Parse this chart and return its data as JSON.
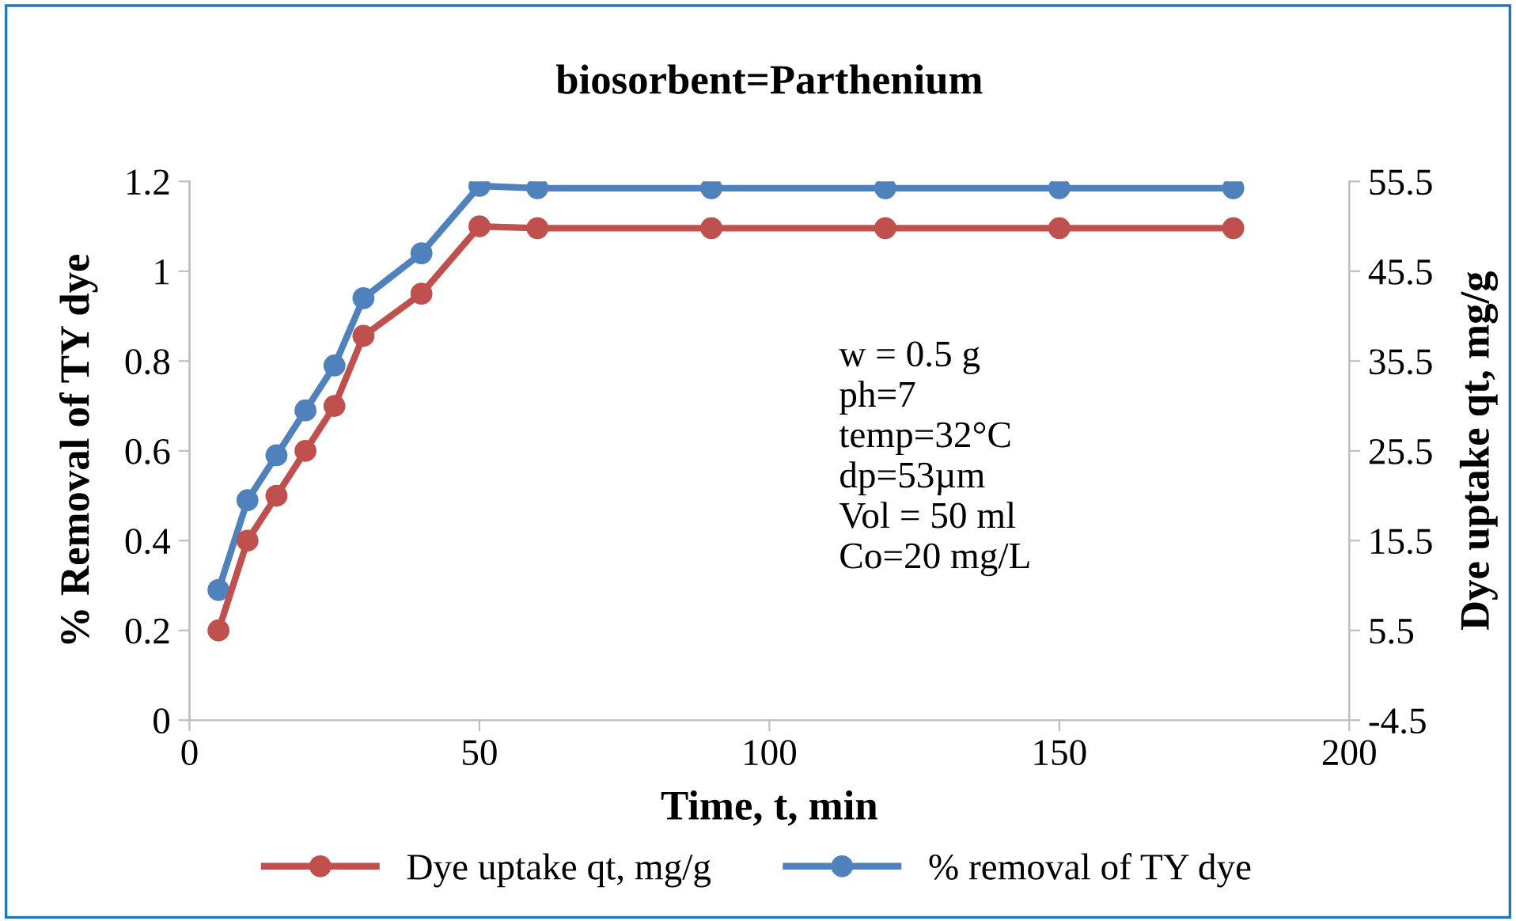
{
  "chart_data": {
    "type": "line",
    "title": "biosorbent=Parthenium",
    "xlabel": "Time, t, min",
    "ylabel": "% Removal of TY dye",
    "y2label": "Dye uptake qt, mg/g",
    "x": [
      5,
      10,
      15,
      20,
      25,
      30,
      40,
      50,
      60,
      90,
      120,
      150,
      180
    ],
    "series": [
      {
        "name": "Dye uptake qt, mg/g",
        "color": "#c0504d",
        "axis": "y2",
        "values": [
          5.5,
          15.5,
          20.5,
          25.5,
          30.5,
          38.3,
          43,
          50.5,
          50.3,
          50.3,
          50.3,
          50.3,
          50.3
        ]
      },
      {
        "name": "% removal of TY dye",
        "color": "#4f81bd",
        "axis": "y",
        "values": [
          0.29,
          0.49,
          0.59,
          0.69,
          0.79,
          0.94,
          1.04,
          1.19,
          1.185,
          1.185,
          1.185,
          1.185,
          1.185
        ]
      }
    ],
    "xlim": [
      0,
      200
    ],
    "xticks": [
      0,
      50,
      100,
      150,
      200
    ],
    "ylim": [
      0,
      1.2
    ],
    "yticks": [
      0,
      0.2,
      0.4,
      0.6,
      0.8,
      1,
      1.2
    ],
    "y2lim": [
      -4.5,
      55.5
    ],
    "y2ticks": [
      -4.5,
      5.5,
      15.5,
      25.5,
      35.5,
      45.5,
      55.5
    ],
    "annotations": [
      "w = 0.5 g",
      "ph=7",
      "temp=32°C",
      "dp=53µm",
      "Vol = 50 ml",
      "Co=20 mg/L"
    ],
    "marker": "circle",
    "line_style": "solid",
    "grid": false,
    "legend": "bottom"
  }
}
